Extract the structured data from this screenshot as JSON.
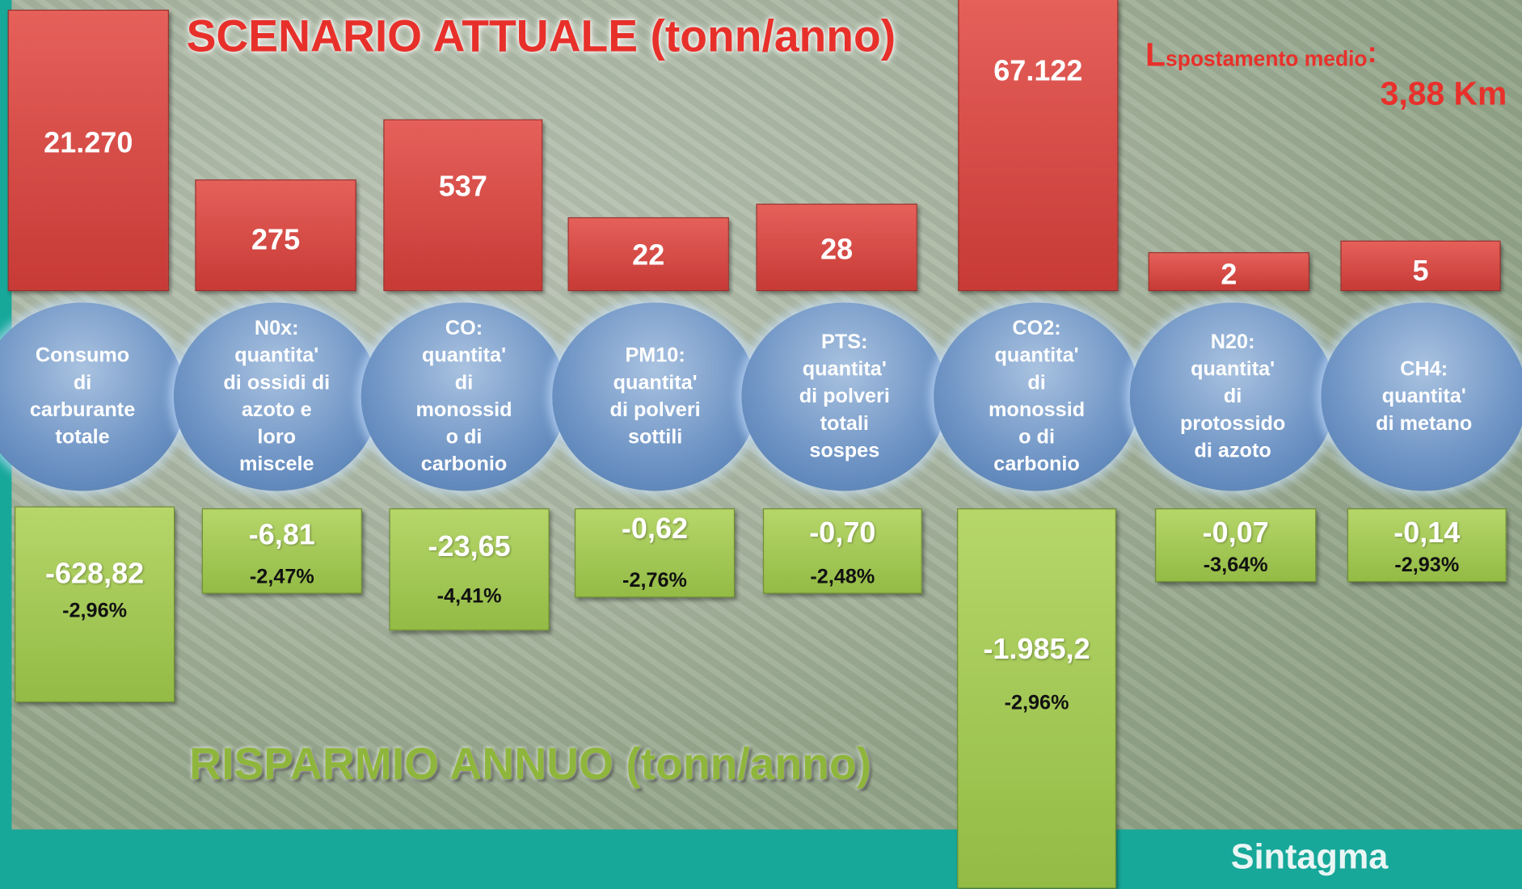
{
  "header": {
    "title": "SCENARIO ATTUALE (tonn/anno)",
    "subtitle": "RISPARMIO ANNUO (tonn/anno)",
    "note": {
      "letter": "L",
      "subscript": "spostamento medio",
      "colon": ":",
      "value": "3,88 Km"
    },
    "logo": "Sintagma"
  },
  "items": [
    {
      "current": "21.270",
      "label": [
        "Consumo",
        "di",
        "carburante",
        "totale"
      ],
      "saving": "-628,82",
      "percent": "-2,96%"
    },
    {
      "current": "275",
      "label": [
        "N0x:",
        "quantita'",
        "di ossidi di",
        "azoto e",
        "loro",
        "miscele"
      ],
      "saving": "-6,81",
      "percent": "-2,47%"
    },
    {
      "current": "537",
      "label": [
        "CO:",
        "quantita'",
        "di",
        "monossid",
        "o di",
        "carbonio"
      ],
      "saving": "-23,65",
      "percent": "-4,41%"
    },
    {
      "current": "22",
      "label": [
        "PM10:",
        "quantita'",
        "di polveri",
        "sottili"
      ],
      "saving": "-0,62",
      "percent": "-2,76%"
    },
    {
      "current": "28",
      "label": [
        "PTS:",
        "quantita'",
        "di polveri",
        "totali",
        "sospes"
      ],
      "saving": "-0,70",
      "percent": "-2,48%"
    },
    {
      "current": "67.122",
      "label": [
        "CO2:",
        "quantita'",
        "di",
        "monossid",
        "o di",
        "carbonio"
      ],
      "saving": "-1.985,2",
      "percent": "-2,96%"
    },
    {
      "current": "2",
      "label": [
        "N20:",
        "quantita'",
        "di",
        "protossido",
        "di azoto"
      ],
      "saving": "-0,07",
      "percent": "-3,64%"
    },
    {
      "current": "5",
      "label": [
        "CH4:",
        "quantita'",
        "di metano"
      ],
      "saving": "-0,14",
      "percent": "-2,93%"
    }
  ]
}
